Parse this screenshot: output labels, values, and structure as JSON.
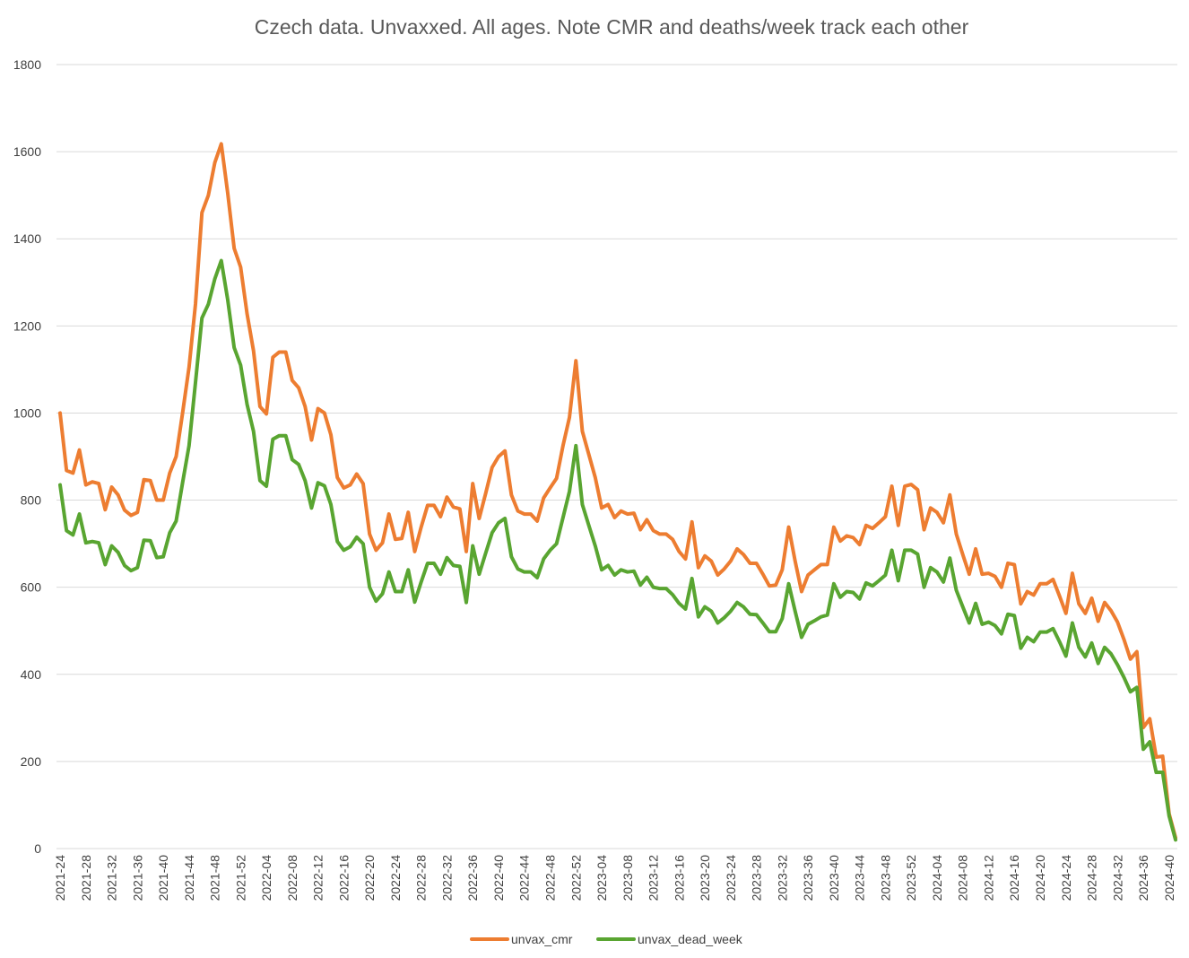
{
  "chart_data": {
    "type": "line",
    "title": "Czech data. Unvaxxed. All ages. Note CMR and deaths/week track each other",
    "xlabel": "",
    "ylabel": "",
    "ylim": [
      0,
      1800
    ],
    "yticks": [
      0,
      200,
      400,
      600,
      800,
      1000,
      1200,
      1400,
      1600,
      1800
    ],
    "grid": true,
    "legend_position": "bottom",
    "x": [
      "2021-24",
      "2021-25",
      "2021-26",
      "2021-27",
      "2021-28",
      "2021-29",
      "2021-30",
      "2021-31",
      "2021-32",
      "2021-33",
      "2021-34",
      "2021-35",
      "2021-36",
      "2021-37",
      "2021-38",
      "2021-39",
      "2021-40",
      "2021-41",
      "2021-42",
      "2021-43",
      "2021-44",
      "2021-45",
      "2021-46",
      "2021-47",
      "2021-48",
      "2021-49",
      "2021-50",
      "2021-51",
      "2021-52",
      "2022-01",
      "2022-02",
      "2022-03",
      "2022-04",
      "2022-05",
      "2022-06",
      "2022-07",
      "2022-08",
      "2022-09",
      "2022-10",
      "2022-11",
      "2022-12",
      "2022-13",
      "2022-14",
      "2022-15",
      "2022-16",
      "2022-17",
      "2022-18",
      "2022-19",
      "2022-20",
      "2022-21",
      "2022-22",
      "2022-23",
      "2022-24",
      "2022-25",
      "2022-26",
      "2022-27",
      "2022-28",
      "2022-29",
      "2022-30",
      "2022-31",
      "2022-32",
      "2022-33",
      "2022-34",
      "2022-35",
      "2022-36",
      "2022-37",
      "2022-38",
      "2022-39",
      "2022-40",
      "2022-41",
      "2022-42",
      "2022-43",
      "2022-44",
      "2022-45",
      "2022-46",
      "2022-47",
      "2022-48",
      "2022-49",
      "2022-50",
      "2022-51",
      "2022-52",
      "2023-01",
      "2023-02",
      "2023-03",
      "2023-04",
      "2023-05",
      "2023-06",
      "2023-07",
      "2023-08",
      "2023-09",
      "2023-10",
      "2023-11",
      "2023-12",
      "2023-13",
      "2023-14",
      "2023-15",
      "2023-16",
      "2023-17",
      "2023-18",
      "2023-19",
      "2023-20",
      "2023-21",
      "2023-22",
      "2023-23",
      "2023-24",
      "2023-25",
      "2023-26",
      "2023-27",
      "2023-28",
      "2023-29",
      "2023-30",
      "2023-31",
      "2023-32",
      "2023-33",
      "2023-34",
      "2023-35",
      "2023-36",
      "2023-37",
      "2023-38",
      "2023-39",
      "2023-40",
      "2023-41",
      "2023-42",
      "2023-43",
      "2023-44",
      "2023-45",
      "2023-46",
      "2023-47",
      "2023-48",
      "2023-49",
      "2023-50",
      "2023-51",
      "2023-52",
      "2024-01",
      "2024-02",
      "2024-03",
      "2024-04",
      "2024-05",
      "2024-06",
      "2024-07",
      "2024-08",
      "2024-09",
      "2024-10",
      "2024-11",
      "2024-12",
      "2024-13",
      "2024-14",
      "2024-15",
      "2024-16",
      "2024-17",
      "2024-18",
      "2024-19",
      "2024-20",
      "2024-21",
      "2024-22",
      "2024-23",
      "2024-24",
      "2024-25",
      "2024-26",
      "2024-27",
      "2024-28",
      "2024-29",
      "2024-30",
      "2024-31",
      "2024-32",
      "2024-33",
      "2024-34",
      "2024-35",
      "2024-36",
      "2024-37",
      "2024-38",
      "2024-39",
      "2024-40",
      "2024-41"
    ],
    "xtick_labels": [
      "2021-24",
      "2021-28",
      "2021-32",
      "2021-36",
      "2021-40",
      "2021-44",
      "2021-48",
      "2021-52",
      "2022-04",
      "2022-08",
      "2022-12",
      "2022-16",
      "2022-20",
      "2022-24",
      "2022-28",
      "2022-32",
      "2022-36",
      "2022-40",
      "2022-44",
      "2022-48",
      "2022-52",
      "2023-04",
      "2023-08",
      "2023-12",
      "2023-16",
      "2023-20",
      "2023-24",
      "2023-28",
      "2023-32",
      "2023-36",
      "2023-40",
      "2023-44",
      "2023-48",
      "2023-52",
      "2024-04",
      "2024-08",
      "2024-12",
      "2024-16",
      "2024-20",
      "2024-24",
      "2024-28",
      "2024-32",
      "2024-36",
      "2024-40"
    ],
    "series": [
      {
        "name": "unvax_cmr",
        "color": "#ED7D31",
        "values": [
          1000,
          868,
          862,
          915,
          835,
          842,
          838,
          778,
          830,
          812,
          777,
          765,
          772,
          847,
          845,
          800,
          800,
          862,
          900,
          1000,
          1105,
          1250,
          1460,
          1500,
          1575,
          1618,
          1505,
          1378,
          1335,
          1228,
          1143,
          1015,
          998,
          1128,
          1140,
          1140,
          1075,
          1058,
          1015,
          938,
          1010,
          1000,
          950,
          852,
          828,
          835,
          860,
          838,
          722,
          685,
          702,
          768,
          710,
          712,
          772,
          682,
          738,
          788,
          788,
          762,
          807,
          784,
          780,
          682,
          838,
          758,
          815,
          875,
          900,
          913,
          812,
          775,
          768,
          768,
          752,
          805,
          828,
          850,
          925,
          990,
          1120,
          958,
          905,
          852,
          782,
          790,
          760,
          775,
          768,
          770,
          732,
          755,
          730,
          722,
          722,
          710,
          682,
          665,
          750,
          645,
          672,
          660,
          628,
          642,
          660,
          688,
          675,
          655,
          655,
          630,
          603,
          605,
          640,
          738,
          660,
          590,
          628,
          640,
          652,
          652,
          738,
          706,
          718,
          714,
          698,
          742,
          735,
          748,
          762,
          832,
          742,
          832,
          836,
          824,
          732,
          782,
          772,
          748,
          812,
          722,
          675,
          630,
          688,
          630,
          632,
          625,
          600,
          655,
          652,
          562,
          590,
          582,
          608,
          608,
          618,
          580,
          540,
          632,
          562,
          540,
          575,
          522,
          565,
          546,
          520,
          480,
          435,
          452,
          278,
          298,
          210,
          212,
          80,
          25
        ]
      },
      {
        "name": "unvax_dead_week",
        "color": "#59A531",
        "values": [
          835,
          730,
          720,
          768,
          702,
          705,
          702,
          652,
          695,
          680,
          650,
          638,
          645,
          708,
          707,
          668,
          670,
          725,
          752,
          840,
          925,
          1070,
          1218,
          1250,
          1308,
          1350,
          1260,
          1150,
          1110,
          1020,
          958,
          845,
          832,
          940,
          948,
          948,
          893,
          882,
          845,
          782,
          840,
          833,
          790,
          705,
          685,
          693,
          715,
          700,
          600,
          568,
          585,
          635,
          590,
          590,
          640,
          566,
          612,
          655,
          655,
          630,
          668,
          650,
          648,
          565,
          695,
          630,
          678,
          725,
          748,
          758,
          670,
          642,
          635,
          635,
          622,
          665,
          685,
          700,
          760,
          820,
          925,
          790,
          742,
          695,
          640,
          650,
          628,
          640,
          635,
          637,
          605,
          623,
          600,
          597,
          597,
          583,
          563,
          550,
          620,
          532,
          555,
          545,
          518,
          530,
          545,
          565,
          555,
          538,
          537,
          518,
          498,
          498,
          528,
          608,
          545,
          485,
          515,
          523,
          532,
          536,
          608,
          577,
          590,
          588,
          573,
          610,
          603,
          615,
          628,
          685,
          615,
          685,
          685,
          676,
          600,
          645,
          635,
          612,
          667,
          593,
          555,
          518,
          563,
          515,
          520,
          512,
          493,
          538,
          535,
          460,
          485,
          475,
          497,
          497,
          505,
          475,
          442,
          518,
          462,
          440,
          472,
          425,
          462,
          447,
          422,
          393,
          360,
          370,
          228,
          245,
          175,
          175,
          75,
          20
        ]
      }
    ]
  }
}
